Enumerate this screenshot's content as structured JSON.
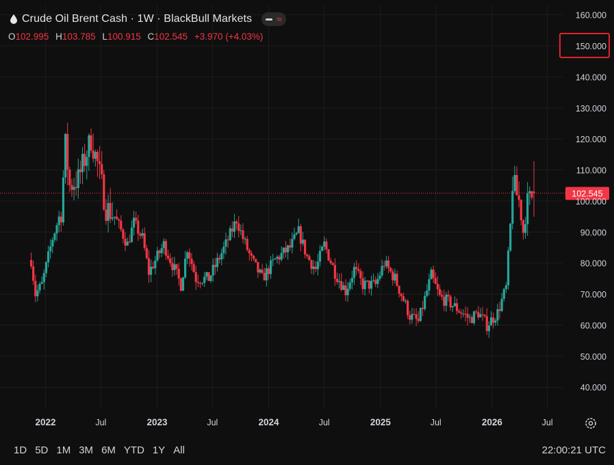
{
  "header": {
    "title": "Crude Oil Brent Cash · 1W · BlackBull Markets",
    "icon": "drop-icon",
    "pill_icons": [
      "minus-icon",
      "wave-icon"
    ]
  },
  "ohlc": {
    "o_label": "O",
    "o_value": "102.995",
    "h_label": "H",
    "h_value": "103.785",
    "l_label": "L",
    "l_value": "100.915",
    "c_label": "C",
    "c_value": "102.545",
    "change": "+3.970 (+4.03%)"
  },
  "price_tag": "102.545",
  "highlighted_tick": "150.000",
  "bottom": {
    "ranges": [
      "1D",
      "5D",
      "1M",
      "3M",
      "6M",
      "YTD",
      "1Y",
      "All"
    ],
    "clock": "22:00:21 UTC",
    "settings_icon": "gear-icon"
  },
  "colors": {
    "up": "#26a69a",
    "down": "#f23645",
    "background": "#0f0f0f",
    "grid": "#1e1e1e",
    "text": "#d1d4dc",
    "highlight": "#e0242e"
  },
  "chart_data": {
    "type": "candlestick",
    "title": "Crude Oil Brent Cash · 1W · BlackBull Markets",
    "interval": "1W",
    "ylim": [
      33,
      163
    ],
    "y_ticks": [
      40,
      50,
      60,
      70,
      80,
      90,
      100,
      110,
      120,
      130,
      140,
      150,
      160
    ],
    "y_tick_labels": [
      "40.000",
      "50.000",
      "60.000",
      "70.000",
      "80.000",
      "90.000",
      "100.000",
      "110.000",
      "120.000",
      "130.000",
      "140.000",
      "150.000",
      "160.000"
    ],
    "x_ticks": [
      {
        "label": "2022",
        "date": "2022-01-01"
      },
      {
        "label": "Jul",
        "date": "2022-07-01"
      },
      {
        "label": "2023",
        "date": "2023-01-01"
      },
      {
        "label": "Jul",
        "date": "2023-07-01"
      },
      {
        "label": "2024",
        "date": "2024-01-01"
      },
      {
        "label": "Jul",
        "date": "2024-07-01"
      },
      {
        "label": "2025",
        "date": "2025-01-01"
      },
      {
        "label": "Jul",
        "date": "2025-07-01"
      },
      {
        "label": "2026",
        "date": "2026-01-01"
      },
      {
        "label": "Jul",
        "date": "2026-07-01"
      }
    ],
    "x_range": [
      "2021-08-05",
      "2026-08-20"
    ],
    "first_week": "2021-11-15",
    "weekly_close_anchors": [
      [
        "2021-11-15",
        81
      ],
      [
        "2021-11-29",
        70
      ],
      [
        "2021-12-20",
        73
      ],
      [
        "2022-01-24",
        88
      ],
      [
        "2022-02-21",
        97
      ],
      [
        "2022-03-07",
        118
      ],
      [
        "2022-03-21",
        105
      ],
      [
        "2022-04-18",
        107
      ],
      [
        "2022-05-30",
        120
      ],
      [
        "2022-06-20",
        112
      ],
      [
        "2022-07-18",
        98
      ],
      [
        "2022-08-15",
        95
      ],
      [
        "2022-09-26",
        86
      ],
      [
        "2022-10-17",
        93
      ],
      [
        "2022-11-14",
        88
      ],
      [
        "2022-12-05",
        77
      ],
      [
        "2023-01-23",
        86
      ],
      [
        "2023-03-20",
        73
      ],
      [
        "2023-04-10",
        85
      ],
      [
        "2023-05-08",
        75
      ],
      [
        "2023-06-19",
        75
      ],
      [
        "2023-07-10",
        79
      ],
      [
        "2023-08-14",
        86
      ],
      [
        "2023-09-18",
        94
      ],
      [
        "2023-10-09",
        88
      ],
      [
        "2023-11-06",
        81
      ],
      [
        "2023-12-11",
        75
      ],
      [
        "2024-01-22",
        81
      ],
      [
        "2024-03-11",
        85
      ],
      [
        "2024-04-08",
        90
      ],
      [
        "2024-05-06",
        82
      ],
      [
        "2024-06-03",
        78
      ],
      [
        "2024-07-01",
        86
      ],
      [
        "2024-08-05",
        77
      ],
      [
        "2024-09-09",
        71
      ],
      [
        "2024-10-07",
        78
      ],
      [
        "2024-11-04",
        73
      ],
      [
        "2024-12-16",
        73
      ],
      [
        "2025-01-13",
        80
      ],
      [
        "2025-02-17",
        75
      ],
      [
        "2025-04-07",
        63
      ],
      [
        "2025-05-05",
        61
      ],
      [
        "2025-06-16",
        76
      ],
      [
        "2025-07-14",
        69
      ],
      [
        "2025-08-18",
        67
      ],
      [
        "2025-10-20",
        62
      ],
      [
        "2025-11-17",
        64
      ],
      [
        "2025-12-15",
        60
      ],
      [
        "2026-01-19",
        64
      ],
      [
        "2026-02-16",
        72
      ],
      [
        "2026-03-02",
        92
      ],
      [
        "2026-03-09",
        106
      ],
      [
        "2026-03-30",
        100
      ],
      [
        "2026-04-13",
        90
      ],
      [
        "2026-04-27",
        99
      ],
      [
        "2026-05-18",
        102.545
      ]
    ],
    "last_bar": {
      "open": 102.995,
      "high": 103.785,
      "low": 100.915,
      "close": 102.545,
      "change": 3.97,
      "change_pct": 4.03
    },
    "last_price_line": 102.545
  }
}
